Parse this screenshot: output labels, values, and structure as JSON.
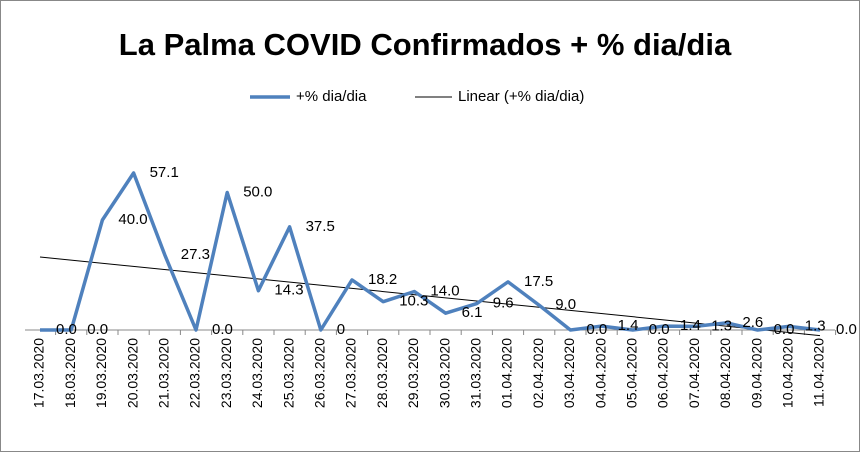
{
  "chart_data": {
    "type": "line",
    "title": "La Palma COVID Confirmados + % dia/dia",
    "categories": [
      "17.03.2020",
      "18.03.2020",
      "19.03.2020",
      "20.03.2020",
      "21.03.2020",
      "22.03.2020",
      "23.03.2020",
      "24.03.2020",
      "25.03.2020",
      "26.03.2020",
      "27.03.2020",
      "28.03.2020",
      "29.03.2020",
      "30.03.2020",
      "31.03.2020",
      "01.04.2020",
      "02.04.2020",
      "03.04.2020",
      "04.04.2020",
      "05.04.2020",
      "06.04.2020",
      "07.04.2020",
      "08.04.2020",
      "09.04.2020",
      "10.04.2020",
      "11.04.2020"
    ],
    "series": [
      {
        "name": "+% dia/dia",
        "color": "#4f81bd",
        "values": [
          0,
          0,
          40,
          57.1,
          27.3,
          0,
          50,
          14.3,
          37.5,
          0,
          18.2,
          10.3,
          14,
          6.1,
          9.6,
          17.5,
          9,
          0,
          1.4,
          0,
          1.4,
          1.3,
          2.6,
          0,
          1.3,
          0
        ],
        "value_labels": [
          "0.0",
          "0.0",
          "40.0",
          "57.1",
          "27.3",
          "0.0",
          "50.0",
          "14.3",
          "37.5",
          "0",
          "18.2",
          "10.3",
          "14.0",
          "6.1",
          "9.6",
          "17.5",
          "9.0",
          "0.0",
          "1.4",
          "0.0",
          "1.4",
          "1.3",
          "2.6",
          "0.0",
          "1.3",
          "0.0"
        ]
      }
    ],
    "trendline": {
      "name": "Linear (+% dia/dia)",
      "color": "#000000"
    },
    "ylim": [
      0,
      60
    ]
  }
}
